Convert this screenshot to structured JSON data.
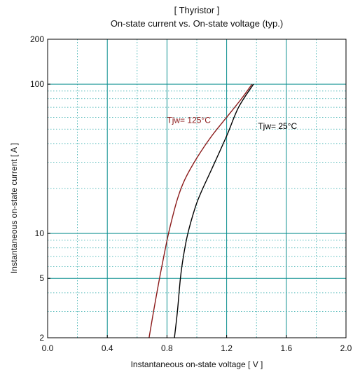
{
  "chart_data": {
    "type": "line",
    "title_line1": "[ Thyristor ]",
    "title_line2": "On-state current  vs.  On-state voltage  (typ.)",
    "xlabel": "Instantaneous on-state voltage   [ V ]",
    "ylabel": "Instantaneous on-state current    [ A ]",
    "x_axis": {
      "scale": "linear",
      "range": [
        0.0,
        2.0
      ],
      "ticks": [
        0.0,
        0.4,
        0.8,
        1.2,
        1.6,
        2.0
      ],
      "tick_labels": [
        "0.0",
        "0.4",
        "0.8",
        "1.2",
        "1.6",
        "2.0"
      ],
      "minor_step": 0.2
    },
    "y_axis": {
      "scale": "log",
      "range": [
        2,
        200
      ],
      "labeled_ticks": [
        2,
        5,
        10,
        100,
        200
      ],
      "tick_labels": [
        "2",
        "5",
        "10",
        "100",
        "200"
      ],
      "major_gridlines": [
        5,
        10,
        100
      ],
      "minor_gridlines": [
        2,
        3,
        4,
        6,
        7,
        8,
        9,
        20,
        30,
        40,
        50,
        60,
        70,
        80,
        90
      ]
    },
    "grid": true,
    "series": [
      {
        "name": "Tjw= 125°C",
        "color": "#8b1a1a",
        "label_position_data": [
          0.8,
          55
        ],
        "points": [
          [
            0.68,
            2
          ],
          [
            0.71,
            3
          ],
          [
            0.75,
            5
          ],
          [
            0.79,
            8
          ],
          [
            0.82,
            11
          ],
          [
            0.87,
            17
          ],
          [
            0.92,
            23
          ],
          [
            1.0,
            32
          ],
          [
            1.1,
            45
          ],
          [
            1.2,
            60
          ],
          [
            1.3,
            80
          ],
          [
            1.37,
            100
          ]
        ]
      },
      {
        "name": "Tjw= 25°C",
        "color": "#000000",
        "label_position_data": [
          1.41,
          50
        ],
        "points": [
          [
            0.85,
            2
          ],
          [
            0.87,
            3
          ],
          [
            0.89,
            5
          ],
          [
            0.91,
            7
          ],
          [
            0.94,
            10
          ],
          [
            0.99,
            15
          ],
          [
            1.03,
            19
          ],
          [
            1.1,
            27
          ],
          [
            1.2,
            45
          ],
          [
            1.28,
            70
          ],
          [
            1.38,
            100
          ]
        ]
      }
    ]
  },
  "colors": {
    "grid_major": "#0b8f8f",
    "grid_minor": "#2aa8a8",
    "axis": "#000000",
    "text": "#111111"
  }
}
